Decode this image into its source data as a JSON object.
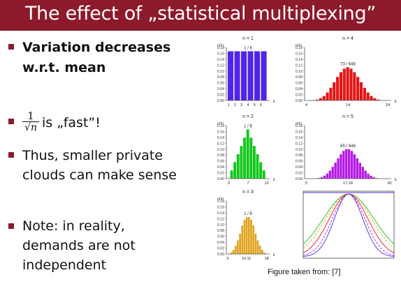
{
  "title": "The effect of „statistical multiplexing”",
  "bullets": {
    "b1_line1": "Variation decreases",
    "b1_line2": "w.r.t. mean",
    "b2_num": "1",
    "b2_den": "√n",
    "b2_text": "is „fast”!",
    "b3_line1": "Thus, smaller private",
    "b3_line2": "clouds can make sense",
    "b4_line1": "Note: in reality,",
    "b4_line2": "demands are not",
    "b4_line3": "independent"
  },
  "caption": "Figure taken from: [7]",
  "colors": {
    "accent": "#8c1a2b",
    "n1": "#4f26e8",
    "n2": "#12c81a",
    "n3": "#e0a41e",
    "n4": "#e61414",
    "n5": "#b418e6"
  },
  "chart_data": [
    {
      "type": "bar",
      "title": "n = 1",
      "ylabel": "p(k)",
      "xlabel": "k",
      "annotation": "1 / 6",
      "x_tick_labels": [
        "1",
        "2",
        "3",
        "4",
        "5",
        "6"
      ],
      "y_tick_labels": [
        "0.00",
        "0.02",
        "0.04",
        "0.06",
        "0.08",
        "0.10",
        "0.12",
        "0.14",
        "0.16",
        "0.18"
      ],
      "ylim": [
        0,
        0.18
      ],
      "x": [
        1,
        2,
        3,
        4,
        5,
        6
      ],
      "values": [
        0.167,
        0.167,
        0.167,
        0.167,
        0.167,
        0.167
      ]
    },
    {
      "type": "bar",
      "title": "n = 4",
      "ylabel": "p(k)",
      "xlabel": "k",
      "annotation": "73 / 648",
      "x_tick_labels": [
        "4",
        "14",
        "24"
      ],
      "y_tick_labels": [
        "0.00",
        "0.02",
        "0.04",
        "0.06",
        "0.08",
        "0.10",
        "0.12",
        "0.14",
        "0.16",
        "0.18"
      ],
      "ylim": [
        0,
        0.18
      ],
      "x": [
        4,
        5,
        6,
        7,
        8,
        9,
        10,
        11,
        12,
        13,
        14,
        15,
        16,
        17,
        18,
        19,
        20,
        21,
        22,
        23,
        24
      ],
      "values": [
        0.001,
        0.003,
        0.008,
        0.015,
        0.027,
        0.043,
        0.062,
        0.08,
        0.096,
        0.108,
        0.113,
        0.108,
        0.096,
        0.08,
        0.062,
        0.043,
        0.027,
        0.015,
        0.008,
        0.003,
        0.001
      ]
    },
    {
      "type": "bar",
      "title": "n = 2",
      "ylabel": "p(k)",
      "xlabel": "k",
      "annotation": "1 / 6",
      "x_tick_labels": [
        "2",
        "7",
        "12"
      ],
      "y_tick_labels": [
        "0.00",
        "0.02",
        "0.04",
        "0.06",
        "0.08",
        "0.10",
        "0.12",
        "0.14",
        "0.16",
        "0.18"
      ],
      "ylim": [
        0,
        0.18
      ],
      "x": [
        2,
        3,
        4,
        5,
        6,
        7,
        8,
        9,
        10,
        11,
        12
      ],
      "values": [
        0.028,
        0.056,
        0.083,
        0.111,
        0.139,
        0.167,
        0.139,
        0.111,
        0.083,
        0.056,
        0.028
      ]
    },
    {
      "type": "bar",
      "title": "n = 5",
      "ylabel": "p(k)",
      "xlabel": "k",
      "annotation": "65 / 648",
      "x_tick_labels": [
        "5",
        "17.18",
        "30"
      ],
      "y_tick_labels": [
        "0.00",
        "0.02",
        "0.04",
        "0.06",
        "0.08",
        "0.10",
        "0.12",
        "0.14",
        "0.16",
        "0.18"
      ],
      "ylim": [
        0,
        0.18
      ],
      "x": [
        5,
        6,
        7,
        8,
        9,
        10,
        11,
        12,
        13,
        14,
        15,
        16,
        17,
        18,
        19,
        20,
        21,
        22,
        23,
        24,
        25,
        26,
        27,
        28,
        29,
        30
      ],
      "values": [
        0.0001,
        0.0006,
        0.002,
        0.005,
        0.01,
        0.017,
        0.027,
        0.04,
        0.054,
        0.069,
        0.083,
        0.094,
        0.1,
        0.1,
        0.094,
        0.083,
        0.069,
        0.054,
        0.04,
        0.027,
        0.017,
        0.01,
        0.005,
        0.002,
        0.0006,
        0.0001
      ]
    },
    {
      "type": "bar",
      "title": "n = 3",
      "ylabel": "p(k)",
      "xlabel": "k",
      "annotation": "1 / 8",
      "x_tick_labels": [
        "3",
        "10.11",
        "18"
      ],
      "y_tick_labels": [
        "0.00",
        "0.02",
        "0.04",
        "0.06",
        "0.08",
        "0.10",
        "0.12",
        "0.14",
        "0.16",
        "0.18"
      ],
      "ylim": [
        0,
        0.18
      ],
      "x": [
        3,
        4,
        5,
        6,
        7,
        8,
        9,
        10,
        11,
        12,
        13,
        14,
        15,
        16,
        17,
        18
      ],
      "values": [
        0.005,
        0.014,
        0.028,
        0.046,
        0.069,
        0.097,
        0.116,
        0.125,
        0.125,
        0.116,
        0.097,
        0.069,
        0.046,
        0.028,
        0.014,
        0.005
      ]
    },
    {
      "type": "line",
      "series": [
        {
          "color": "#4f26e8",
          "values": [
            0.6,
            0.2
          ]
        },
        {
          "color": "#e61414",
          "values": [
            0.42
          ]
        },
        {
          "color": "#12c81a",
          "values": [
            0.5
          ]
        },
        {
          "color": "#b418e6",
          "values": [
            0.38
          ]
        },
        {
          "color": "#e0a41e",
          "values": [
            0.45
          ]
        }
      ]
    }
  ]
}
